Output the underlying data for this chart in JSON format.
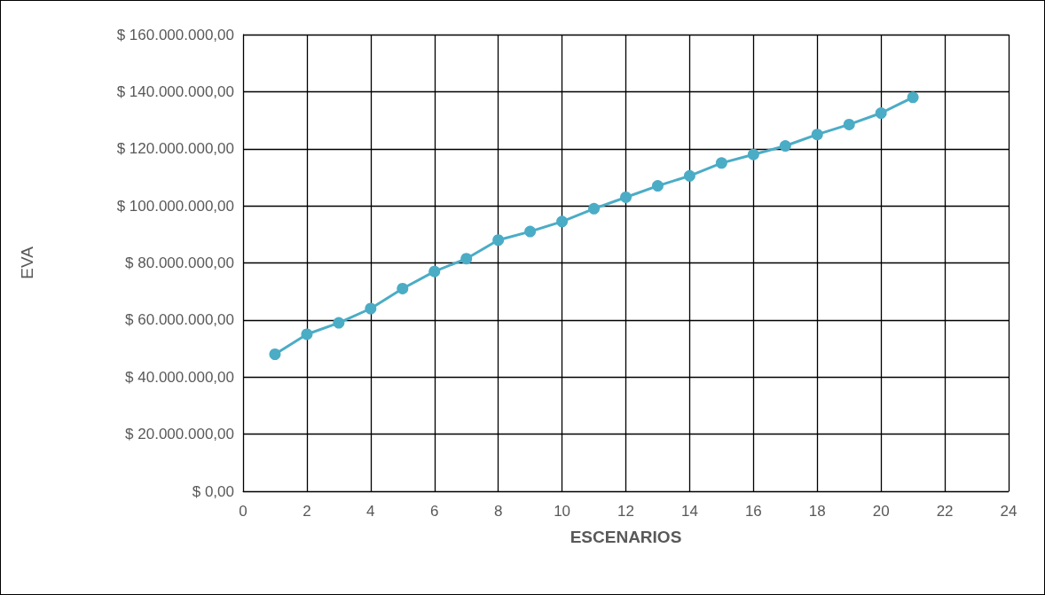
{
  "chart_data": {
    "type": "line",
    "xlabel": "ESCENARIOS",
    "ylabel": "EVA",
    "x": [
      1,
      2,
      3,
      4,
      5,
      6,
      7,
      8,
      9,
      10,
      11,
      12,
      13,
      14,
      15,
      16,
      17,
      18,
      19,
      20,
      21
    ],
    "series": [
      {
        "color": "#4bacc6",
        "values": [
          48000000,
          55000000,
          59000000,
          64000000,
          71000000,
          77000000,
          81500000,
          88000000,
          91000000,
          94500000,
          99000000,
          103000000,
          107000000,
          110500000,
          115000000,
          118000000,
          121000000,
          125000000,
          128500000,
          132500000,
          138000000
        ]
      }
    ],
    "xlim": [
      0,
      24
    ],
    "xticks": [
      0,
      2,
      4,
      6,
      8,
      10,
      12,
      14,
      16,
      18,
      20,
      22,
      24
    ],
    "ylim": [
      0,
      160000000
    ],
    "yticks": [
      {
        "value": 0,
        "label": "$ 0,00"
      },
      {
        "value": 20000000,
        "label": "$ 20.000.000,00"
      },
      {
        "value": 40000000,
        "label": "$ 40.000.000,00"
      },
      {
        "value": 60000000,
        "label": "$ 60.000.000,00"
      },
      {
        "value": 80000000,
        "label": "$ 80.000.000,00"
      },
      {
        "value": 100000000,
        "label": "$ 100.000.000,00"
      },
      {
        "value": 120000000,
        "label": "$ 120.000.000,00"
      },
      {
        "value": 140000000,
        "label": "$ 140.000.000,00"
      },
      {
        "value": 160000000,
        "label": "$ 160.000.000,00"
      }
    ],
    "grid": true,
    "marker": "circle",
    "line_style": "solid"
  }
}
